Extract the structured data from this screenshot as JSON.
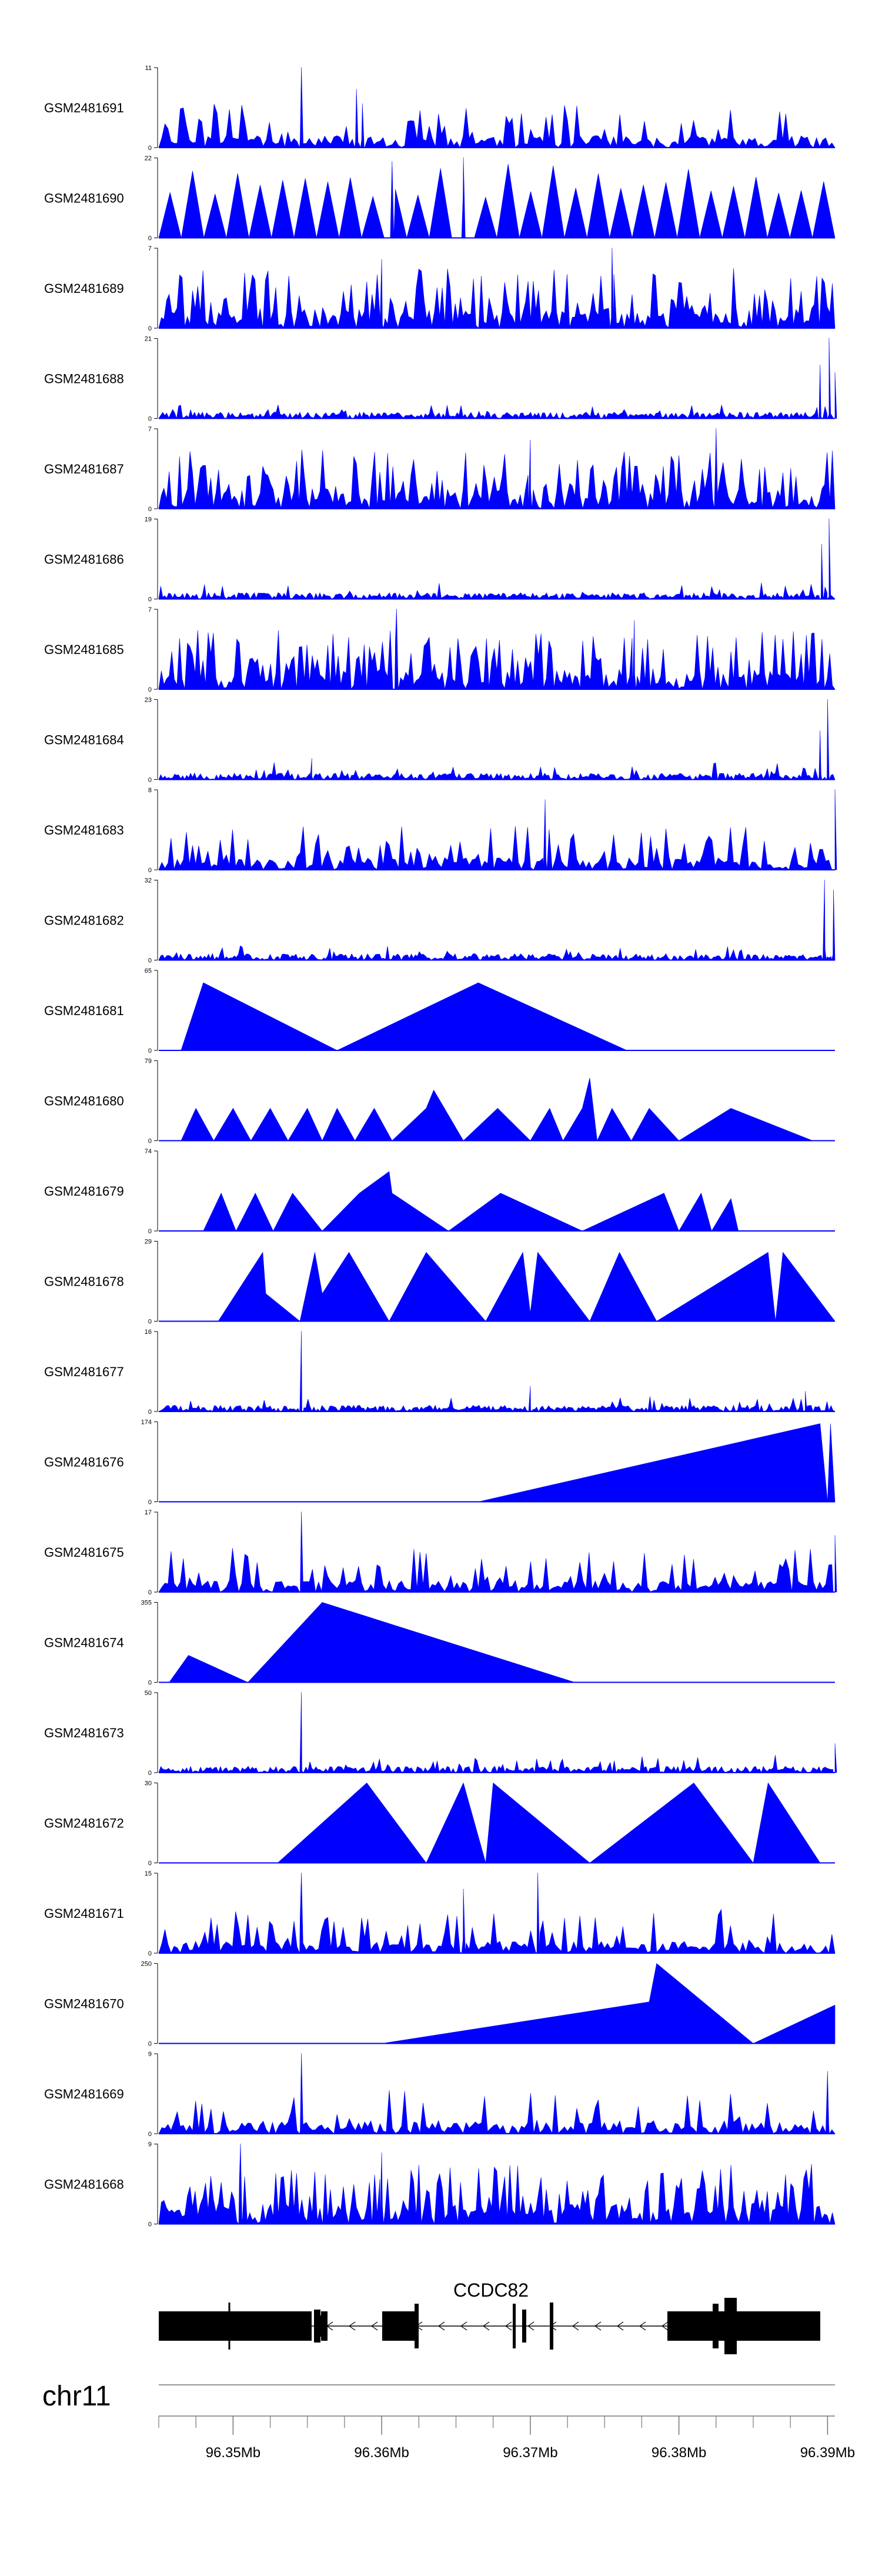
{
  "chart_data": {
    "type": "area",
    "title": "",
    "chromosome": "chr11",
    "x_range": [
      96.345,
      96.3905
    ],
    "x_unit": "Mb",
    "x_ticks": [
      96.35,
      96.36,
      96.37,
      96.38,
      96.39
    ],
    "x_tick_labels": [
      "96.35Mb",
      "96.36Mb",
      "96.37Mb",
      "96.38Mb",
      "96.39Mb"
    ],
    "color": "#0000ff",
    "gene": {
      "name": "CCDC82",
      "start": 96.345,
      "end": 96.39,
      "strand": "-"
    },
    "tracks": [
      {
        "name": "GSM2481691",
        "ymax": 11,
        "ymin": 0,
        "style": "spiky",
        "peaks": [
          {
            "x": 96.3546,
            "y": 11
          },
          {
            "x": 96.3583,
            "y": 8
          },
          {
            "x": 96.3587,
            "y": 6
          }
        ]
      },
      {
        "name": "GSM2481690",
        "ymax": 22,
        "ymin": 0,
        "style": "sparse",
        "peaks": [
          {
            "x": 96.3655,
            "y": 22
          },
          {
            "x": 96.3607,
            "y": 21
          }
        ]
      },
      {
        "name": "GSM2481689",
        "ymax": 7,
        "ymin": 0,
        "style": "dense",
        "peaks": [
          {
            "x": 96.3755,
            "y": 7
          },
          {
            "x": 96.36,
            "y": 6
          }
        ]
      },
      {
        "name": "GSM2481688",
        "ymax": 21,
        "ymin": 0,
        "style": "low",
        "peaks": [
          {
            "x": 96.3901,
            "y": 21
          },
          {
            "x": 96.3895,
            "y": 14
          },
          {
            "x": 96.3905,
            "y": 12
          }
        ]
      },
      {
        "name": "GSM2481687",
        "ymax": 7,
        "ymin": 0,
        "style": "dense",
        "peaks": [
          {
            "x": 96.3825,
            "y": 7
          },
          {
            "x": 96.37,
            "y": 6
          }
        ]
      },
      {
        "name": "GSM2481686",
        "ymax": 19,
        "ymin": 0,
        "style": "low",
        "peaks": [
          {
            "x": 96.3901,
            "y": 19
          },
          {
            "x": 96.3896,
            "y": 13
          }
        ]
      },
      {
        "name": "GSM2481685",
        "ymax": 7,
        "ymin": 0,
        "style": "dense",
        "peaks": [
          {
            "x": 96.361,
            "y": 7
          },
          {
            "x": 96.377,
            "y": 6
          }
        ]
      },
      {
        "name": "GSM2481684",
        "ymax": 23,
        "ymin": 0,
        "style": "low",
        "peaks": [
          {
            "x": 96.39,
            "y": 23
          },
          {
            "x": 96.3895,
            "y": 14
          },
          {
            "x": 96.3553,
            "y": 6
          }
        ]
      },
      {
        "name": "GSM2481683",
        "ymax": 8,
        "ymin": 0,
        "style": "spiky",
        "peaks": [
          {
            "x": 96.3905,
            "y": 8
          },
          {
            "x": 96.371,
            "y": 7
          }
        ]
      },
      {
        "name": "GSM2481682",
        "ymax": 32,
        "ymin": 0,
        "style": "low",
        "peaks": [
          {
            "x": 96.3898,
            "y": 32
          },
          {
            "x": 96.3904,
            "y": 28
          }
        ]
      },
      {
        "name": "GSM2481681",
        "ymax": 65,
        "ymin": 0,
        "style": "triangles",
        "points": [
          [
            96.3465,
            0
          ],
          [
            96.348,
            55
          ],
          [
            96.357,
            0
          ],
          [
            96.3665,
            55
          ],
          [
            96.3765,
            0
          ]
        ]
      },
      {
        "name": "GSM2481680",
        "ymax": 79,
        "ymin": 0,
        "style": "triangles",
        "points": [
          [
            96.3465,
            0
          ],
          [
            96.3475,
            32
          ],
          [
            96.3487,
            0
          ],
          [
            96.35,
            32
          ],
          [
            96.3512,
            0
          ],
          [
            96.3525,
            32
          ],
          [
            96.3537,
            0
          ],
          [
            96.355,
            32
          ],
          [
            96.356,
            0
          ],
          [
            96.357,
            32
          ],
          [
            96.3582,
            0
          ],
          [
            96.3595,
            32
          ],
          [
            96.3607,
            0
          ],
          [
            96.363,
            32
          ],
          [
            96.3635,
            50
          ],
          [
            96.3655,
            0
          ],
          [
            96.3678,
            32
          ],
          [
            96.37,
            0
          ],
          [
            96.3713,
            32
          ],
          [
            96.3722,
            0
          ],
          [
            96.3735,
            32
          ],
          [
            96.374,
            62
          ],
          [
            96.3745,
            0
          ],
          [
            96.3755,
            32
          ],
          [
            96.3768,
            0
          ],
          [
            96.378,
            32
          ],
          [
            96.38,
            0
          ],
          [
            96.3835,
            32
          ],
          [
            96.389,
            0
          ]
        ]
      },
      {
        "name": "GSM2481679",
        "ymax": 74,
        "ymin": 0,
        "style": "triangles",
        "points": [
          [
            96.348,
            0
          ],
          [
            96.3492,
            35
          ],
          [
            96.3502,
            0
          ],
          [
            96.3515,
            35
          ],
          [
            96.3527,
            0
          ],
          [
            96.354,
            35
          ],
          [
            96.356,
            0
          ],
          [
            96.3585,
            35
          ],
          [
            96.3605,
            55
          ],
          [
            96.3607,
            35
          ],
          [
            96.3645,
            0
          ],
          [
            96.368,
            35
          ],
          [
            96.3735,
            0
          ],
          [
            96.379,
            35
          ],
          [
            96.38,
            0
          ],
          [
            96.3815,
            35
          ],
          [
            96.3822,
            0
          ],
          [
            96.3835,
            30
          ],
          [
            96.384,
            0
          ]
        ]
      },
      {
        "name": "GSM2481678",
        "ymax": 29,
        "ymin": 0,
        "style": "triangles",
        "points": [
          [
            96.349,
            0
          ],
          [
            96.352,
            25
          ],
          [
            96.3522,
            10
          ],
          [
            96.3545,
            0
          ],
          [
            96.3555,
            25
          ],
          [
            96.356,
            10
          ],
          [
            96.3578,
            25
          ],
          [
            96.3605,
            0
          ],
          [
            96.363,
            25
          ],
          [
            96.367,
            0
          ],
          [
            96.3695,
            25
          ],
          [
            96.37,
            3
          ],
          [
            96.3705,
            25
          ],
          [
            96.374,
            0
          ],
          [
            96.376,
            25
          ],
          [
            96.3785,
            0
          ],
          [
            96.386,
            25
          ],
          [
            96.3865,
            0
          ],
          [
            96.387,
            25
          ],
          [
            96.3905,
            0
          ]
        ]
      },
      {
        "name": "GSM2481677",
        "ymax": 16,
        "ymin": 0,
        "style": "low",
        "peaks": [
          {
            "x": 96.3546,
            "y": 16
          },
          {
            "x": 96.37,
            "y": 5
          },
          {
            "x": 96.3885,
            "y": 4
          }
        ]
      },
      {
        "name": "GSM2481676",
        "ymax": 174,
        "ymin": 0,
        "style": "triangles",
        "points": [
          [
            96.3665,
            0
          ],
          [
            96.3895,
            170
          ],
          [
            96.39,
            0
          ],
          [
            96.3902,
            170
          ],
          [
            96.3905,
            0
          ]
        ]
      },
      {
        "name": "GSM2481675",
        "ymax": 17,
        "ymin": 0,
        "style": "spiky",
        "peaks": [
          {
            "x": 96.3546,
            "y": 17
          },
          {
            "x": 96.3905,
            "y": 12
          }
        ]
      },
      {
        "name": "GSM2481674",
        "ymax": 355,
        "ymin": 0,
        "style": "triangles",
        "points": [
          [
            96.3457,
            0
          ],
          [
            96.347,
            120
          ],
          [
            96.351,
            0
          ],
          [
            96.356,
            355
          ],
          [
            96.373,
            0
          ]
        ]
      },
      {
        "name": "GSM2481673",
        "ymax": 50,
        "ymin": 0,
        "style": "low",
        "peaks": [
          {
            "x": 96.3546,
            "y": 50
          },
          {
            "x": 96.3905,
            "y": 18
          }
        ]
      },
      {
        "name": "GSM2481672",
        "ymax": 30,
        "ymin": 0,
        "style": "triangles",
        "points": [
          [
            96.353,
            0
          ],
          [
            96.359,
            30
          ],
          [
            96.363,
            0
          ],
          [
            96.3655,
            30
          ],
          [
            96.367,
            0
          ],
          [
            96.3675,
            30
          ],
          [
            96.374,
            0
          ],
          [
            96.381,
            30
          ],
          [
            96.385,
            0
          ],
          [
            96.386,
            30
          ],
          [
            96.3895,
            0
          ]
        ]
      },
      {
        "name": "GSM2481671",
        "ymax": 15,
        "ymin": 0,
        "style": "spiky",
        "peaks": [
          {
            "x": 96.3546,
            "y": 15
          },
          {
            "x": 96.3705,
            "y": 15
          },
          {
            "x": 96.3655,
            "y": 12
          }
        ]
      },
      {
        "name": "GSM2481670",
        "ymax": 250,
        "ymin": 0,
        "style": "triangles",
        "points": [
          [
            96.36,
            0
          ],
          [
            96.378,
            130
          ],
          [
            96.3785,
            250
          ],
          [
            96.385,
            0
          ],
          [
            96.3905,
            120
          ],
          [
            96.3905,
            0
          ]
        ]
      },
      {
        "name": "GSM2481669",
        "ymax": 9,
        "ymin": 0,
        "style": "spiky",
        "peaks": [
          {
            "x": 96.3546,
            "y": 9
          },
          {
            "x": 96.39,
            "y": 7
          }
        ]
      },
      {
        "name": "GSM2481668",
        "ymax": 9,
        "ymin": 0,
        "style": "dense",
        "peaks": [
          {
            "x": 96.3505,
            "y": 9
          },
          {
            "x": 96.36,
            "y": 8
          }
        ]
      }
    ]
  }
}
